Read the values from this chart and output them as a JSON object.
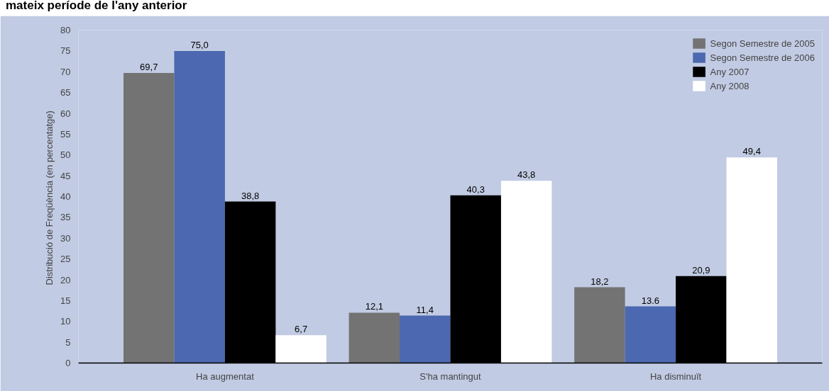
{
  "chart_data": {
    "type": "bar",
    "title": "mateix període de l'any anterior",
    "ylabel": "Distribució de Freqüència  (en percentatge)",
    "categories": [
      "Ha augmentat",
      "S'ha mantingut",
      "Ha disminuït"
    ],
    "series": [
      {
        "name": "Segon Semestre de 2005",
        "color": "#737373",
        "values": [
          69.7,
          12.1,
          18.2
        ],
        "value_labels": [
          "69,7",
          "12,1",
          "18,2"
        ]
      },
      {
        "name": "Segon Semestre de 2006",
        "color": "#4b68b0",
        "values": [
          75.0,
          11.4,
          13.6
        ],
        "value_labels": [
          "75,0",
          "11,4",
          "13.6"
        ]
      },
      {
        "name": "Any 2007",
        "color": "#000000",
        "values": [
          38.8,
          40.3,
          20.9
        ],
        "value_labels": [
          "38,8",
          "40,3",
          "20,9"
        ]
      },
      {
        "name": "Any 2008",
        "color": "#ffffff",
        "values": [
          6.7,
          43.8,
          49.4
        ],
        "value_labels": [
          "6,7",
          "43,8",
          "49,4"
        ]
      }
    ],
    "ylim": [
      0,
      80
    ],
    "yticks": [
      0,
      5,
      10,
      15,
      20,
      25,
      30,
      35,
      40,
      45,
      50,
      55,
      60,
      65,
      70,
      75,
      80
    ],
    "grid": false,
    "legend": "top right"
  }
}
